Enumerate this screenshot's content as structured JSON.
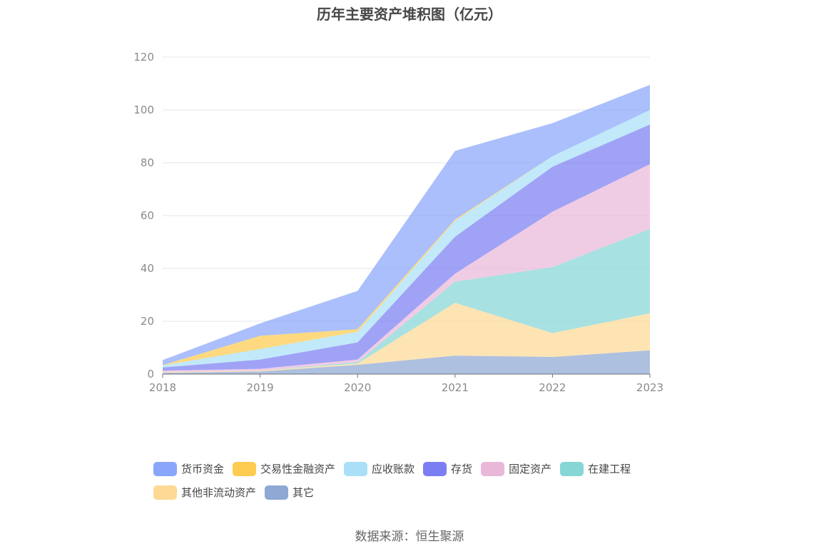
{
  "title": "历年主要资产堆积图（亿元）",
  "source": "数据来源：恒生聚源",
  "chart_data": {
    "type": "area",
    "stacked": true,
    "categories": [
      "2018",
      "2019",
      "2020",
      "2021",
      "2022",
      "2023"
    ],
    "y_ticks": [
      "0",
      "20",
      "40",
      "60",
      "80",
      "100",
      "120"
    ],
    "ylim": [
      0,
      120
    ],
    "grid": true,
    "legend_position": "bottom",
    "series": [
      {
        "name": "其它",
        "color": "#8fa8d4",
        "values": [
          0.5,
          1.0,
          3.5,
          7.0,
          6.5,
          9.0
        ]
      },
      {
        "name": "其他非流动资产",
        "color": "#fdd995",
        "values": [
          0.3,
          0.3,
          0.5,
          20.0,
          9.0,
          14.0
        ]
      },
      {
        "name": "在建工程",
        "color": "#86d6d6",
        "values": [
          0.0,
          0.0,
          0.5,
          8.0,
          25.0,
          32.0
        ]
      },
      {
        "name": "固定资产",
        "color": "#e9b8d9",
        "values": [
          0.5,
          0.7,
          1.0,
          3.0,
          21.0,
          24.5
        ]
      },
      {
        "name": "存货",
        "color": "#7b7ef2",
        "values": [
          1.2,
          3.5,
          6.5,
          14.0,
          17.0,
          15.0
        ]
      },
      {
        "name": "应收账款",
        "color": "#a9e0f7",
        "values": [
          0.8,
          4.0,
          4.0,
          6.0,
          4.0,
          5.5
        ]
      },
      {
        "name": "交易性金融资产",
        "color": "#fdcb4f",
        "values": [
          0.1,
          5.0,
          1.0,
          0.5,
          0.0,
          0.0
        ]
      },
      {
        "name": "货币资金",
        "color": "#89a6fa",
        "values": [
          1.9,
          4.7,
          14.5,
          26.0,
          12.5,
          9.5
        ]
      }
    ]
  },
  "legend": [
    [
      {
        "label": "货币资金",
        "color": "#89a6fa"
      },
      {
        "label": "交易性金融资产",
        "color": "#fdcb4f"
      },
      {
        "label": "应收账款",
        "color": "#a9e0f7"
      },
      {
        "label": "存货",
        "color": "#7b7ef2"
      },
      {
        "label": "固定资产",
        "color": "#e9b8d9"
      },
      {
        "label": "在建工程",
        "color": "#86d6d6"
      }
    ],
    [
      {
        "label": "其他非流动资产",
        "color": "#fdd995"
      },
      {
        "label": "其它",
        "color": "#8fa8d4"
      }
    ]
  ]
}
